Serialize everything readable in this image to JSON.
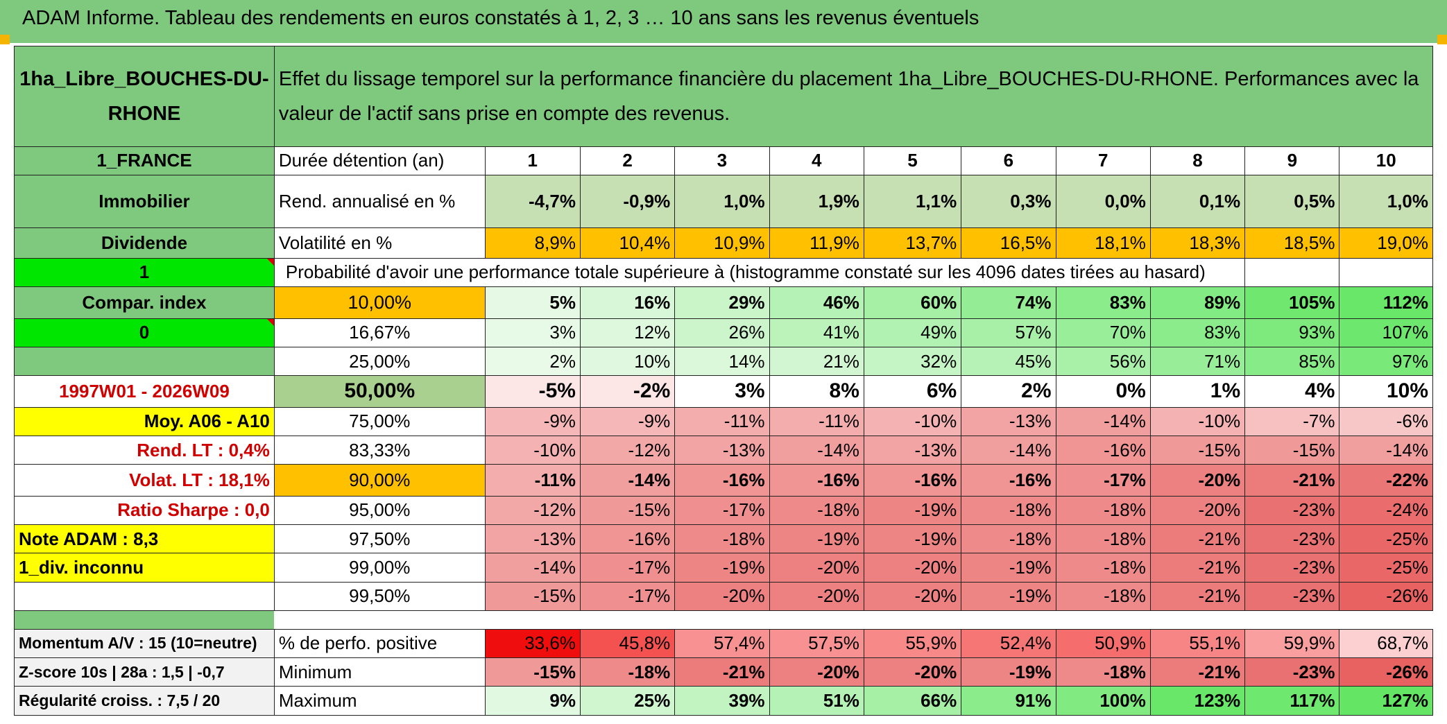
{
  "title": "ADAM Informe. Tableau des rendements en euros constatés à 1, 2, 3 … 10 ans sans les revenus éventuels",
  "header": {
    "asset": "1ha_Libre_BOUCHES-DU-RHONE",
    "description": "Effet du lissage temporel sur la performance financière du placement 1ha_Libre_BOUCHES-DU-RHONE. Performances avec la valeur de l'actif sans prise en compte des revenus."
  },
  "left": {
    "country": "1_FRANCE",
    "category": "Immobilier",
    "dividend": "Dividende",
    "one": "1",
    "compar": "Compar. index",
    "zero": "0",
    "period": "1997W01 - 2026W09",
    "moy": "Moy. A06 - A10",
    "rend_lt": "Rend. LT :   0,4%",
    "volat_lt": "Volat. LT :   18,1%",
    "sharpe": "Ratio Sharpe :    0,0",
    "note": "Note ADAM : 8,3",
    "div": "1_div. inconnu",
    "momentum": "Momentum A/V : 15 (10=neutre)",
    "zscore": "Z-score 10s | 28a : 1,5 | -0,7",
    "regularite": "Régularité croiss. : 7,5 / 20"
  },
  "duree_label": "Durée détention (an)",
  "years": [
    "1",
    "2",
    "3",
    "4",
    "5",
    "6",
    "7",
    "8",
    "9",
    "10"
  ],
  "rend_label": "Rend. annualisé en %",
  "rend": [
    "-4,7%",
    "-0,9%",
    "1,0%",
    "1,9%",
    "1,1%",
    "0,3%",
    "0,0%",
    "0,1%",
    "0,5%",
    "1,0%"
  ],
  "vol_label": "Volatilité en %",
  "vol": [
    "8,9%",
    "10,4%",
    "10,9%",
    "11,9%",
    "13,7%",
    "16,5%",
    "18,1%",
    "18,3%",
    "18,5%",
    "19,0%"
  ],
  "prob_label": "Probabilité d'avoir une performance totale supérieure à (histogramme constaté sur les 4096 dates tirées au hasard)",
  "prob_rows": [
    {
      "label": "10,00%",
      "values": [
        "5%",
        "16%",
        "29%",
        "46%",
        "60%",
        "74%",
        "83%",
        "89%",
        "105%",
        "112%"
      ]
    },
    {
      "label": "16,67%",
      "values": [
        "3%",
        "12%",
        "26%",
        "41%",
        "49%",
        "57%",
        "70%",
        "83%",
        "93%",
        "107%"
      ]
    },
    {
      "label": "25,00%",
      "values": [
        "2%",
        "10%",
        "14%",
        "21%",
        "32%",
        "45%",
        "56%",
        "71%",
        "85%",
        "97%"
      ]
    },
    {
      "label": "50,00%",
      "values": [
        "-5%",
        "-2%",
        "3%",
        "8%",
        "6%",
        "2%",
        "0%",
        "1%",
        "4%",
        "10%"
      ]
    },
    {
      "label": "75,00%",
      "values": [
        "-9%",
        "-9%",
        "-11%",
        "-11%",
        "-10%",
        "-13%",
        "-14%",
        "-10%",
        "-7%",
        "-6%"
      ]
    },
    {
      "label": "83,33%",
      "values": [
        "-10%",
        "-12%",
        "-13%",
        "-14%",
        "-13%",
        "-14%",
        "-16%",
        "-15%",
        "-15%",
        "-14%"
      ]
    },
    {
      "label": "90,00%",
      "values": [
        "-11%",
        "-14%",
        "-16%",
        "-16%",
        "-16%",
        "-16%",
        "-17%",
        "-20%",
        "-21%",
        "-22%"
      ]
    },
    {
      "label": "95,00%",
      "values": [
        "-12%",
        "-15%",
        "-17%",
        "-18%",
        "-19%",
        "-18%",
        "-18%",
        "-20%",
        "-23%",
        "-24%"
      ]
    },
    {
      "label": "97,50%",
      "values": [
        "-13%",
        "-16%",
        "-18%",
        "-19%",
        "-19%",
        "-18%",
        "-18%",
        "-21%",
        "-23%",
        "-25%"
      ]
    },
    {
      "label": "99,00%",
      "values": [
        "-14%",
        "-17%",
        "-19%",
        "-20%",
        "-20%",
        "-19%",
        "-18%",
        "-21%",
        "-23%",
        "-25%"
      ]
    },
    {
      "label": "99,50%",
      "values": [
        "-15%",
        "-17%",
        "-20%",
        "-20%",
        "-20%",
        "-19%",
        "-18%",
        "-21%",
        "-23%",
        "-26%"
      ]
    }
  ],
  "pos_label": "% de perfo. positive",
  "pos": [
    "33,6%",
    "45,8%",
    "57,4%",
    "57,5%",
    "55,9%",
    "52,4%",
    "50,9%",
    "55,1%",
    "59,9%",
    "68,7%"
  ],
  "min_label": "Minimum",
  "min": [
    "-15%",
    "-18%",
    "-21%",
    "-20%",
    "-20%",
    "-19%",
    "-18%",
    "-21%",
    "-23%",
    "-26%"
  ],
  "max_label": "Maximum",
  "max": [
    "9%",
    "25%",
    "39%",
    "51%",
    "66%",
    "91%",
    "100%",
    "123%",
    "117%",
    "127%"
  ],
  "colors": {
    "header_green": "#7fc97f",
    "yellow": "#ffff00",
    "orange": "#ffc000",
    "bright_green": "#00e600",
    "red_text": "#d00000"
  }
}
